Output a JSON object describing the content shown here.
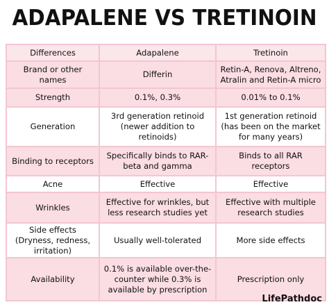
{
  "header": {
    "title": "ADAPALENE VS TRETINOIN"
  },
  "table": {
    "columns": [
      "Differences",
      "Adapalene",
      "Tretinoin"
    ],
    "rows": [
      [
        "Brand or other names",
        "Differin",
        "Retin-A, Renova, Altreno, Atralin and Retin-A micro"
      ],
      [
        "Strength",
        "0.1%, 0.3%",
        "0.01% to 0.1%"
      ],
      [
        "Generation",
        "3rd generation retinoid (newer addition to retinoids)",
        "1st generation retinoid (has been on the market for many years)"
      ],
      [
        "Binding to receptors",
        "Specifically binds to RAR-beta and gamma",
        "Binds to all RAR receptors"
      ],
      [
        "Acne",
        "Effective",
        "Effective"
      ],
      [
        "Wrinkles",
        "Effective for wrinkles, but less research studies yet",
        "Effective with multiple research studies"
      ],
      [
        "Side effects (Dryness, redness, irritation)",
        "Usually well-tolerated",
        "More side effects"
      ],
      [
        "Availability",
        "0.1% is available over-the-counter while 0.3% is available by prescription",
        "Prescription only"
      ]
    ]
  },
  "footer": {
    "brand": "LifePathdoc"
  }
}
